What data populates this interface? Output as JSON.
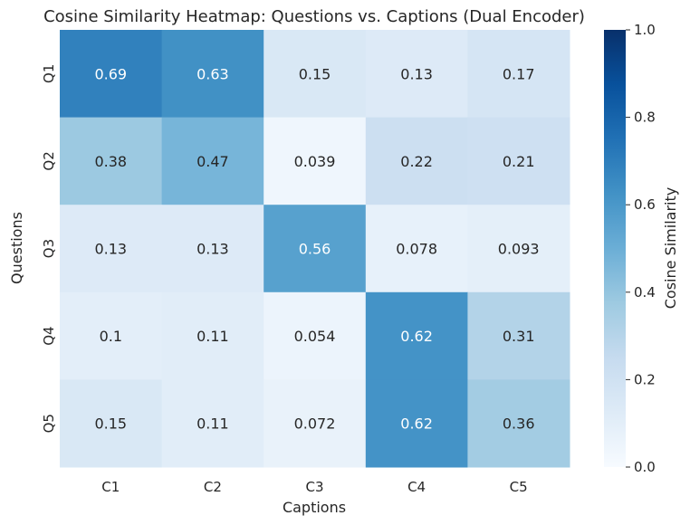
{
  "chart_data": {
    "type": "heatmap",
    "title": "Cosine Similarity Heatmap: Questions vs. Captions (Dual Encoder)",
    "xlabel": "Captions",
    "ylabel": "Questions",
    "x_categories": [
      "C1",
      "C2",
      "C3",
      "C4",
      "C5"
    ],
    "y_categories": [
      "Q1",
      "Q2",
      "Q3",
      "Q4",
      "Q5"
    ],
    "values": [
      [
        0.69,
        0.63,
        0.15,
        0.13,
        0.17
      ],
      [
        0.38,
        0.47,
        0.039,
        0.22,
        0.21
      ],
      [
        0.13,
        0.13,
        0.56,
        0.078,
        0.093
      ],
      [
        0.1,
        0.11,
        0.054,
        0.62,
        0.31
      ],
      [
        0.15,
        0.11,
        0.072,
        0.62,
        0.36
      ]
    ],
    "colormap": "Blues",
    "vmin": 0,
    "vmax": 1,
    "colorbar": {
      "label": "Cosine Similarity",
      "ticks": [
        0.0,
        0.2,
        0.4,
        0.6,
        0.8,
        1.0
      ],
      "tick_labels": [
        "0.0",
        "0.2",
        "0.4",
        "0.6",
        "0.8",
        "1.0"
      ]
    },
    "annotated": true,
    "grid": false
  }
}
